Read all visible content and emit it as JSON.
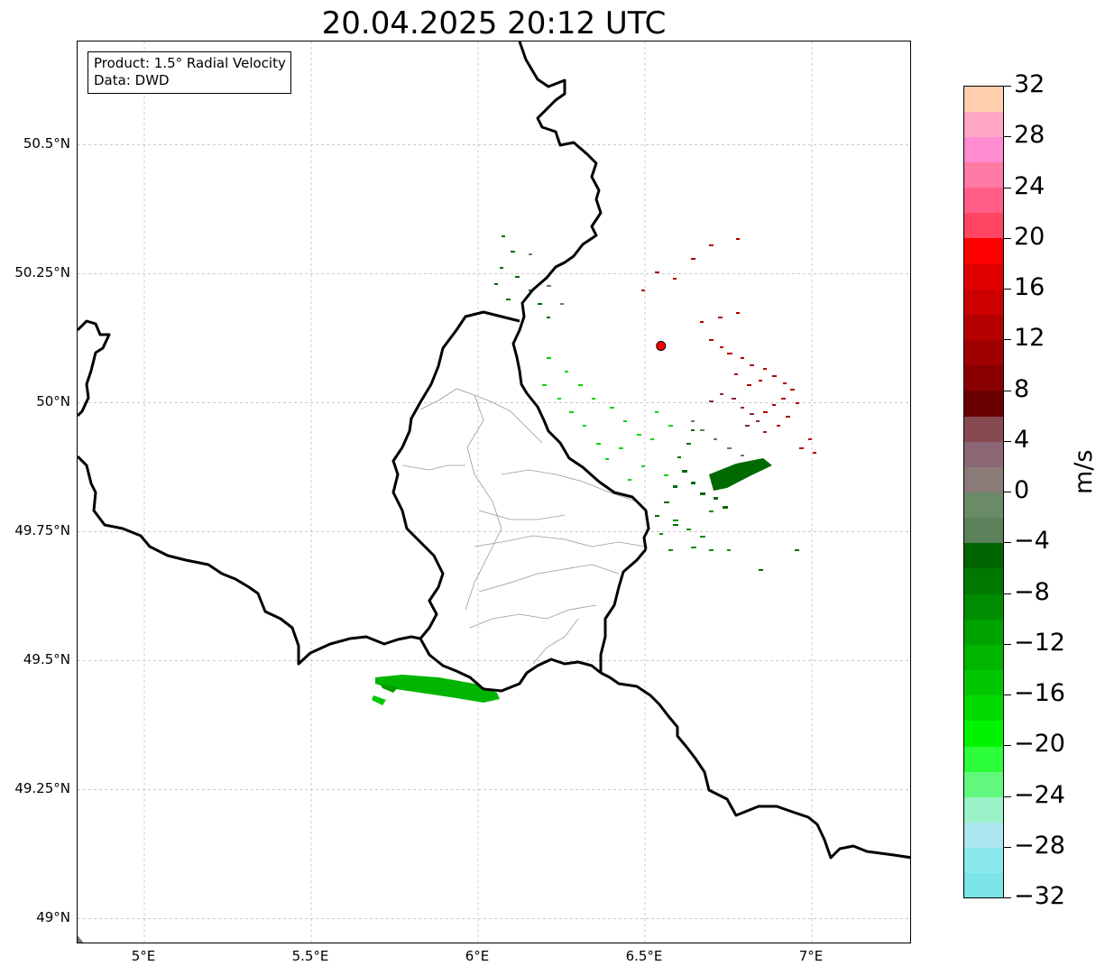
{
  "title": "20.04.2025 20:12 UTC",
  "info_box": {
    "product": "Product: 1.5° Radial Velocity",
    "data_source": "Data: DWD"
  },
  "map": {
    "lon_range": [
      4.8,
      7.3
    ],
    "lat_range": [
      48.95,
      50.7
    ],
    "lat_ticks": [
      {
        "value": 50.5,
        "label": "50.5°N"
      },
      {
        "value": 50.25,
        "label": "50.25°N"
      },
      {
        "value": 50.0,
        "label": "50°N"
      },
      {
        "value": 49.75,
        "label": "49.75°N"
      },
      {
        "value": 49.5,
        "label": "49.5°N"
      },
      {
        "value": 49.25,
        "label": "49.25°N"
      },
      {
        "value": 49.0,
        "label": "49°N"
      }
    ],
    "lon_ticks": [
      {
        "value": 5.0,
        "label": "5°E"
      },
      {
        "value": 5.5,
        "label": "5.5°E"
      },
      {
        "value": 6.0,
        "label": "6°E"
      },
      {
        "value": 6.5,
        "label": "6.5°E"
      },
      {
        "value": 7.0,
        "label": "7°E"
      }
    ],
    "gridlines": true,
    "radar_site": {
      "lon": 6.548,
      "lat": 50.11,
      "color": "#ff0000"
    },
    "country_border_color": "#000000",
    "district_border_color": "#999999"
  },
  "colorbar": {
    "unit": "m/s",
    "min": -32,
    "max": 32,
    "tick_labels": [
      "32",
      "28",
      "24",
      "20",
      "16",
      "12",
      "8",
      "4",
      "0",
      "−4",
      "−8",
      "−12",
      "−16",
      "−20",
      "−24",
      "−28",
      "−32"
    ],
    "colors": [
      "#7ae4e6",
      "#8ae9ec",
      "#ace7f0",
      "#9cf2c8",
      "#62f87d",
      "#2cff3a",
      "#00f400",
      "#00da00",
      "#00c700",
      "#00b500",
      "#00a200",
      "#008c00",
      "#007800",
      "#006400",
      "#5a8159",
      "#6b8a68",
      "#8a7b78",
      "#8b6674",
      "#874a50",
      "#6b0000",
      "#8a0000",
      "#a00000",
      "#b50000",
      "#cc0000",
      "#e00000",
      "#ff0000",
      "#ff4561",
      "#ff5d86",
      "#ff7aa4",
      "#ff8bd0",
      "#ffa6c6",
      "#ffcfae"
    ]
  }
}
